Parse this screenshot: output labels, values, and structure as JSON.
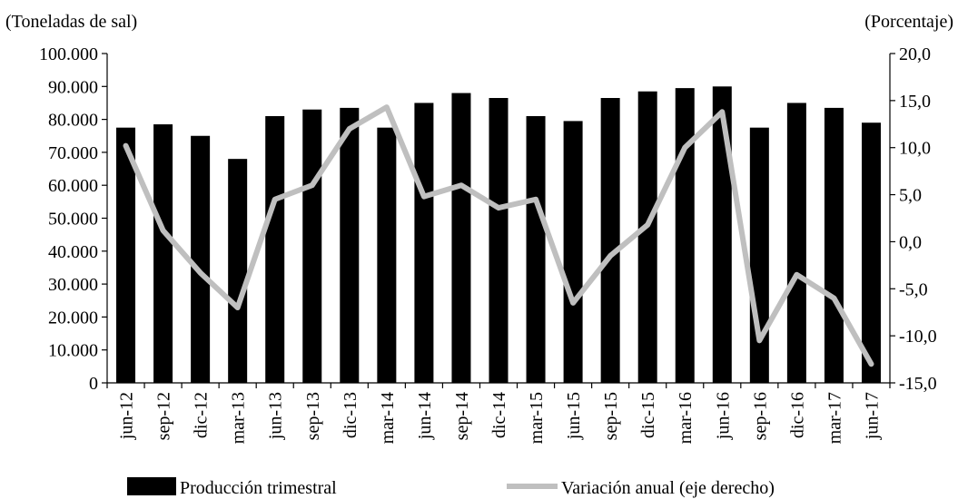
{
  "chart_data": {
    "type": "bar+line",
    "title": "",
    "left_axis_unit": "(Toneladas de sal)",
    "right_axis_unit": "(Porcentaje)",
    "categories": [
      "jun-12",
      "sep-12",
      "dic-12",
      "mar-13",
      "jun-13",
      "sep-13",
      "dic-13",
      "mar-14",
      "jun-14",
      "sep-14",
      "dic-14",
      "mar-15",
      "jun-15",
      "sep-15",
      "dic-15",
      "mar-16",
      "jun-16",
      "sep-16",
      "dic-16",
      "mar-17",
      "jun-17"
    ],
    "left_ylim": [
      0,
      100000
    ],
    "left_ticks": [
      "0",
      "10.000",
      "20.000",
      "30.000",
      "40.000",
      "50.000",
      "60.000",
      "70.000",
      "80.000",
      "90.000",
      "100.000"
    ],
    "right_ylim": [
      -15,
      20
    ],
    "right_ticks": [
      "-15,0",
      "-10,0",
      "-5,0",
      "0,0",
      "5,0",
      "10,0",
      "15,0",
      "20,0"
    ],
    "grid": false,
    "legend_position": "bottom",
    "series": [
      {
        "name": "Producción trimestral",
        "type": "bar",
        "axis": "left",
        "color": "#000000",
        "values": [
          77500,
          78500,
          75000,
          68000,
          81000,
          83000,
          83500,
          77500,
          85000,
          88000,
          86500,
          81000,
          79500,
          86500,
          88500,
          89500,
          90000,
          77500,
          85000,
          83500,
          79000
        ]
      },
      {
        "name": "Variación anual (eje derecho)",
        "type": "line",
        "axis": "right",
        "color": "#bfbfbf",
        "values": [
          10.2,
          1.2,
          -3.3,
          -7.0,
          4.5,
          6.0,
          12.0,
          14.3,
          4.8,
          6.0,
          3.6,
          4.5,
          -6.5,
          -1.5,
          1.8,
          10.0,
          13.8,
          -10.5,
          -3.5,
          -6.0,
          -13.0
        ]
      }
    ]
  }
}
